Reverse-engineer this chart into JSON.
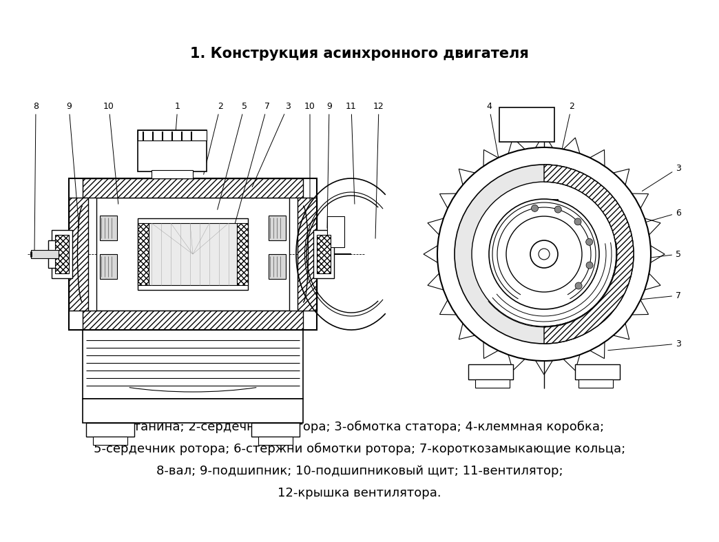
{
  "title": "1. Конструкция асинхронного двигателя",
  "title_fontsize": 15,
  "title_fontweight": "bold",
  "caption_lines": [
    "1-станина; 2-сердечник статора; 3-обмотка статора; 4-клеммная коробка;",
    "5-сердечник ротора; 6-стержни обмотки ротора; 7-короткозамыкающие кольца;",
    "8-вал; 9-подшипник; 10-подшипниковый щит; 11-вентилятор;",
    "12-крышка вентилятора."
  ],
  "caption_fontsize": 13,
  "bg_color": "#ffffff",
  "lc": "#000000"
}
